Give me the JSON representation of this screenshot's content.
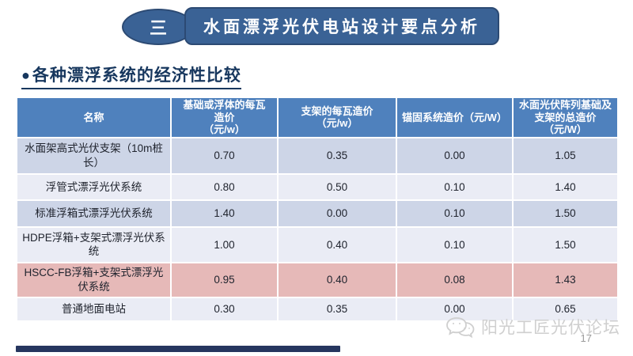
{
  "slide": {
    "badge": "三",
    "title": "水面漂浮光伏电站设计要点分析",
    "heading": {
      "bullet": "●",
      "text": "各种漂浮系统的经济性比较"
    }
  },
  "table": {
    "columns": [
      "名称",
      "基础或浮体的每瓦\n造价\n（元/w）",
      "支架的每瓦造价\n（元/w）",
      "锚固系统造价（元/W）",
      "水面光伏阵列基础及支架的总造价（元/W）"
    ],
    "rows": [
      {
        "name": "水面架高式光伏支架（10m桩长）",
        "values": [
          "0.70",
          "0.35",
          "0.00",
          "1.05"
        ],
        "highlight": false
      },
      {
        "name": "浮管式漂浮光伏系统",
        "values": [
          "0.80",
          "0.50",
          "0.10",
          "1.40"
        ],
        "highlight": false
      },
      {
        "name": "标准浮箱式漂浮光伏系统",
        "values": [
          "1.40",
          "0.00",
          "0.10",
          "1.50"
        ],
        "highlight": false
      },
      {
        "name": "HDPE浮箱+支架式漂浮光伏系统",
        "values": [
          "1.00",
          "0.40",
          "0.10",
          "1.50"
        ],
        "highlight": false
      },
      {
        "name": "HSCC-FB浮箱+支架式漂浮光伏系统",
        "values": [
          "0.95",
          "0.40",
          "0.08",
          "1.43"
        ],
        "highlight": true
      },
      {
        "name": "普通地面电站",
        "values": [
          "0.30",
          "0.35",
          "0.00",
          "0.65"
        ],
        "highlight": false
      }
    ]
  },
  "footer": {
    "watermark_logo": "chat-bubbles-logo",
    "watermark_text": "阳光工匠光伏论坛",
    "page_number": "17"
  },
  "colors": {
    "accent_blue": "#4F81BD",
    "title_blue": "#3A6295",
    "navy": "#17375E",
    "band_dark": "#CDD5E7",
    "band_light": "#EAECF5",
    "highlight_pink": "#E6B9B8",
    "bottom_bar_navy": "#26365F",
    "watermark_gray": "#CFCFCF"
  }
}
